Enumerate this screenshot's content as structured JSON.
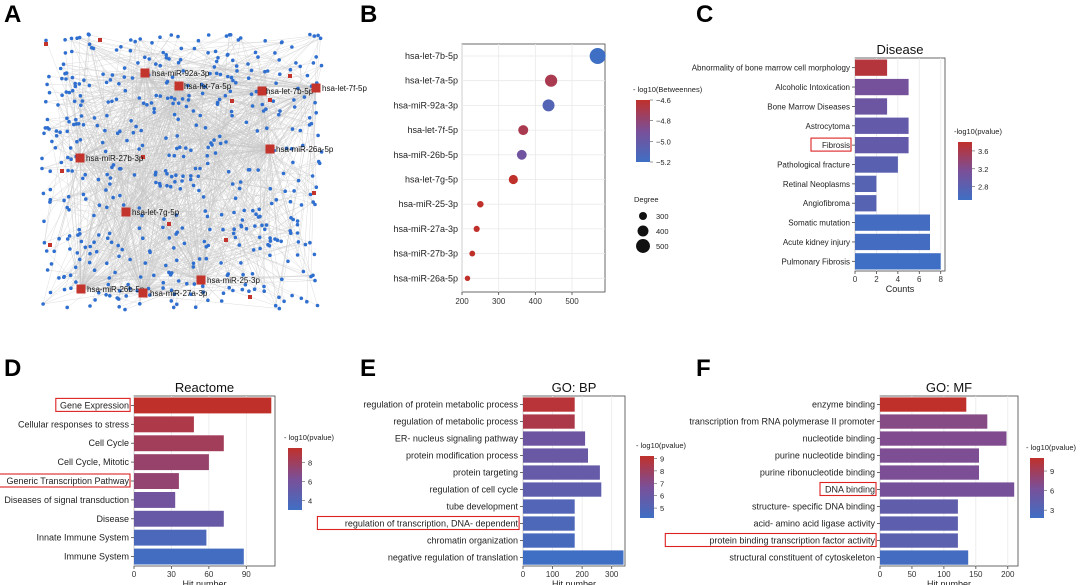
{
  "colors": {
    "low": "#3f6fc4",
    "mid": "#7a4f98",
    "high": "#c0302b",
    "grid": "#e9e9e9",
    "node_blue": "#2f6fcf",
    "node_red": "#c3342c",
    "edge": "#c8c8c8",
    "highlight": "#d22"
  },
  "panels": {
    "A": "A",
    "B": "B",
    "C": "C",
    "D": "D",
    "E": "E",
    "F": "F"
  },
  "network": {
    "hub_labels": [
      "hsa-miR-92a-3p",
      "hsa-let-7a-5p",
      "hsa-let-7b-5p",
      "hsa-let-7f-5p",
      "hsa-miR-27b-3p",
      "hsa-miR-26a-5p",
      "hsa-let-7g-5p",
      "hsa-miR-25-3p",
      "hsa-miR-26b-5p",
      "hsa-miR-27a-3p"
    ]
  },
  "chart_data": [
    {
      "id": "B",
      "type": "scatter",
      "categories": [
        "hsa-let-7b-5p",
        "hsa-let-7a-5p",
        "hsa-miR-92a-3p",
        "hsa-let-7f-5p",
        "hsa-miR-26b-5p",
        "hsa-let-7g-5p",
        "hsa-miR-25-3p",
        "hsa-miR-27a-3p",
        "hsa-miR-27b-3p",
        "hsa-miR-26a-5p"
      ],
      "values": [
        570,
        443,
        436,
        367,
        363,
        340,
        250,
        240,
        228,
        215
      ],
      "color_values": [
        -5.2,
        -4.7,
        -5.1,
        -4.7,
        -4.95,
        -4.6,
        -4.6,
        -4.6,
        -4.6,
        -4.55
      ],
      "xticks": [
        200,
        300,
        400,
        500
      ],
      "xlim": [
        200,
        590
      ],
      "legend_title": "- log10(Betweennes)",
      "legend_ticks": [
        -4.6,
        -4.8,
        -5.0,
        -5.2
      ],
      "legend_tick_labels": [
        "−4.6",
        "−4.8",
        "−5.0",
        "−5.2"
      ],
      "size_title": "Degree",
      "size_ticks": [
        300,
        400,
        500
      ]
    },
    {
      "id": "C",
      "type": "bar",
      "title": "Disease",
      "xlabel": "Counts",
      "categories": [
        "Abnormality of bone marrow cell morphology",
        "Alcoholic Intoxication",
        "Bone Marrow Diseases",
        "Astrocytoma",
        "Fibrosis",
        "Pathological fracture",
        "Retinal Neoplasms",
        "Angiofibroma",
        "Somatic mutation",
        "Acute kidney injury",
        "Pulmonary Fibrosis"
      ],
      "values": [
        3,
        5,
        3,
        5,
        5,
        4,
        2,
        2,
        7,
        7,
        8
      ],
      "color_values": [
        3.7,
        3.1,
        3.0,
        2.9,
        2.9,
        2.8,
        2.75,
        2.75,
        2.55,
        2.55,
        2.45
      ],
      "xticks": [
        0,
        2,
        4,
        6,
        8
      ],
      "xlim": [
        0,
        8.4
      ],
      "highlight": [
        "Fibrosis"
      ],
      "legend_title": "-log10(pvalue)",
      "legend_ticks": [
        3.6,
        3.2,
        2.8
      ],
      "legend_range": [
        2.5,
        3.8
      ]
    },
    {
      "id": "D",
      "type": "bar",
      "title": "Reactome",
      "xlabel": "Hit number",
      "categories": [
        "Gene Expression",
        "Cellular responses to stress",
        "Cell Cycle",
        "Cell Cycle, Mitotic",
        "Generic Transcription Pathway",
        "Diseases of signal transduction",
        "Disease",
        "Innate Immune System",
        "Immune System"
      ],
      "values": [
        110,
        48,
        72,
        60,
        36,
        33,
        72,
        58,
        88
      ],
      "color_values": [
        9.5,
        8.6,
        8.1,
        7.6,
        7.4,
        5.8,
        5.2,
        3.7,
        3.2
      ],
      "xticks": [
        0,
        30,
        60,
        90
      ],
      "xlim": [
        0,
        113
      ],
      "highlight": [
        "Gene Expression",
        "Generic Transcription Pathway"
      ],
      "legend_title": "- log10(pvalue)",
      "legend_ticks": [
        8,
        6,
        4
      ],
      "legend_range": [
        3,
        9.5
      ]
    },
    {
      "id": "E",
      "type": "bar",
      "title": "GO: BP",
      "xlabel": "Hit number",
      "categories": [
        "regulation of protein metabolic process",
        "regulation of metabolic process",
        "ER- nucleus signaling pathway",
        "protein modification process",
        "protein targeting",
        "regulation of cell cycle",
        "tube development",
        "regulation of transcription, DNA- dependent",
        "chromatin organization",
        "negative regulation of translation"
      ],
      "values": [
        175,
        175,
        210,
        220,
        260,
        265,
        175,
        175,
        175,
        340
      ],
      "color_values": [
        8.9,
        8.5,
        6.2,
        6.0,
        5.8,
        5.5,
        5.0,
        4.8,
        4.6,
        4.2
      ],
      "xticks": [
        0,
        100,
        200,
        300
      ],
      "xlim": [
        0,
        345
      ],
      "highlight": [
        "regulation of transcription, DNA- dependent"
      ],
      "legend_title": "- log10(pvalue)",
      "legend_ticks": [
        9,
        8,
        7,
        6,
        5
      ],
      "legend_range": [
        4.2,
        9.2
      ]
    },
    {
      "id": "F",
      "type": "bar",
      "title": "GO: MF",
      "xlabel": "Hit number",
      "categories": [
        "enzyme binding",
        "transcription from RNA polymerase II promoter",
        "nucleotide binding",
        "purine nucleotide binding",
        "purine ribonucleotide binding",
        "DNA binding",
        "structure- specific DNA binding",
        "acid- amino acid ligase activity",
        "protein binding transcription factor activity",
        "structural constituent of cytoskeleton"
      ],
      "values": [
        135,
        168,
        198,
        155,
        155,
        210,
        122,
        122,
        122,
        138
      ],
      "color_values": [
        11,
        7.2,
        6.8,
        6.6,
        6.5,
        6.2,
        4.4,
        4.1,
        4.0,
        2.2
      ],
      "xticks": [
        0,
        50,
        100,
        150,
        200
      ],
      "xlim": [
        0,
        216
      ],
      "highlight": [
        "DNA binding",
        "protein binding transcription factor activity"
      ],
      "legend_title": "- log10(pvalue)",
      "legend_ticks": [
        9,
        6,
        3
      ],
      "legend_range": [
        1.8,
        11
      ]
    }
  ]
}
